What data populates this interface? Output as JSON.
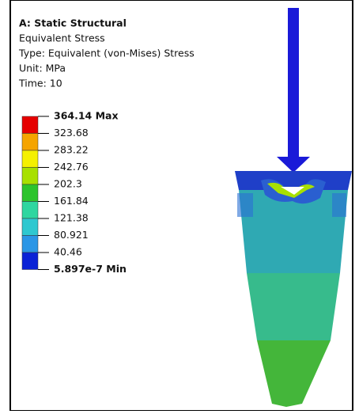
{
  "header": {
    "title": "A: Static Structural",
    "lines": [
      "Equivalent Stress",
      "Type: Equivalent (von-Mises) Stress",
      "Unit: MPa",
      "Time: 10"
    ]
  },
  "legend": {
    "labels": [
      "364.14 Max",
      "323.68",
      "283.22",
      "242.76",
      "202.3",
      "161.84",
      "121.38",
      "80.921",
      "40.46",
      "5.897e-7 Min"
    ],
    "colors": [
      "#e60000",
      "#f5a400",
      "#f5f000",
      "#a8e000",
      "#2cc42c",
      "#2ed6a0",
      "#2ec8d0",
      "#2a96e6",
      "#0a22d6"
    ]
  }
}
